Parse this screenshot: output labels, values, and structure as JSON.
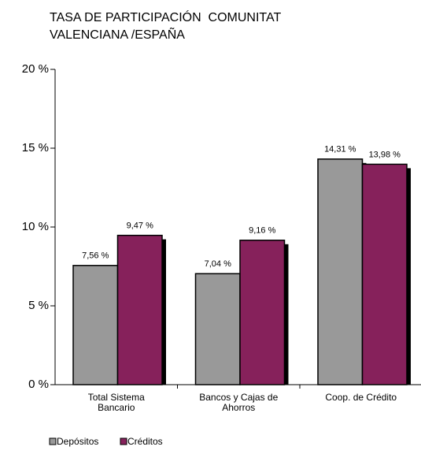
{
  "chart_data": {
    "type": "bar",
    "title": "TASA DE PARTICIPACIÓN  COMUNITAT VALENCIANA /ESPAÑA",
    "categories": [
      "Total Sistema Bancario",
      "Bancos y Cajas de Ahorros",
      "Coop. de Crédito"
    ],
    "series": [
      {
        "name": "Depósitos",
        "color": "#999999",
        "values": [
          7.56,
          7.04,
          14.31
        ],
        "value_labels": [
          "7,56 %",
          "7,04 %",
          "14,31 %"
        ]
      },
      {
        "name": "Créditos",
        "color": "#86215b",
        "values": [
          9.47,
          9.16,
          13.98
        ],
        "value_labels": [
          "9,47 %",
          "9,16 %",
          "13,98 %"
        ]
      }
    ],
    "ylim": [
      0,
      20
    ],
    "yticks": [
      {
        "value": 0,
        "label": "0 %"
      },
      {
        "value": 5,
        "label": "5 %"
      },
      {
        "value": 10,
        "label": "10 %"
      },
      {
        "value": 15,
        "label": "15 %"
      },
      {
        "value": 20,
        "label": "20 %"
      }
    ],
    "grid": false,
    "legend": "bottom-left"
  }
}
